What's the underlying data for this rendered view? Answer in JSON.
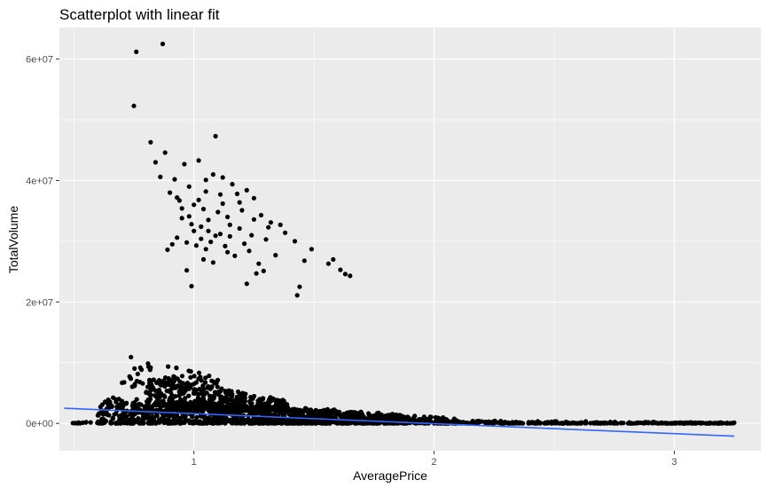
{
  "chart_data": {
    "type": "scatter",
    "title": "Scatterplot with linear fit",
    "xlabel": "AveragePrice",
    "ylabel": "TotalVolume",
    "xlim": [
      0.44,
      3.36
    ],
    "ylim": [
      -4500000,
      65200000
    ],
    "x_ticks": [
      1,
      2,
      3
    ],
    "x_tick_labels": [
      "1",
      "2",
      "3"
    ],
    "y_ticks": [
      0,
      20000000,
      40000000,
      60000000
    ],
    "y_tick_labels": [
      "0e+00",
      "2e+07",
      "4e+07",
      "6e+07"
    ],
    "grid": true,
    "background": "#ebebeb",
    "point_color": "#000000",
    "fit_color": "#3366ff",
    "fit_line": {
      "x": [
        0.46,
        3.25
      ],
      "y": [
        2500000,
        -2100000
      ]
    },
    "high_volume_points": [
      [
        0.76,
        61200000
      ],
      [
        0.87,
        62500000
      ],
      [
        0.75,
        52300000
      ],
      [
        0.82,
        46300000
      ],
      [
        1.09,
        47300000
      ],
      [
        0.84,
        43000000
      ],
      [
        0.88,
        44600000
      ],
      [
        1.02,
        43300000
      ],
      [
        0.96,
        42700000
      ],
      [
        1.08,
        41000000
      ],
      [
        1.12,
        40500000
      ],
      [
        0.92,
        40200000
      ],
      [
        0.98,
        39000000
      ],
      [
        1.05,
        38200000
      ],
      [
        1.16,
        39400000
      ],
      [
        1.18,
        37800000
      ],
      [
        1.22,
        38400000
      ],
      [
        1.25,
        37100000
      ],
      [
        0.9,
        38000000
      ],
      [
        0.94,
        36700000
      ],
      [
        1.0,
        36000000
      ],
      [
        1.04,
        35300000
      ],
      [
        1.1,
        34800000
      ],
      [
        1.14,
        34000000
      ],
      [
        1.2,
        35100000
      ],
      [
        1.28,
        34300000
      ],
      [
        1.32,
        33100000
      ],
      [
        0.95,
        33800000
      ],
      [
        0.99,
        32800000
      ],
      [
        1.03,
        32400000
      ],
      [
        1.06,
        31700000
      ],
      [
        1.11,
        31200000
      ],
      [
        1.15,
        30800000
      ],
      [
        1.19,
        32100000
      ],
      [
        1.24,
        31000000
      ],
      [
        1.3,
        30300000
      ],
      [
        1.36,
        32700000
      ],
      [
        1.38,
        31400000
      ],
      [
        0.93,
        30600000
      ],
      [
        0.97,
        29800000
      ],
      [
        1.01,
        29300000
      ],
      [
        1.05,
        28700000
      ],
      [
        1.07,
        29900000
      ],
      [
        1.13,
        29200000
      ],
      [
        0.89,
        28600000
      ],
      [
        0.91,
        29500000
      ],
      [
        1.17,
        27600000
      ],
      [
        1.23,
        28400000
      ],
      [
        1.27,
        26300000
      ],
      [
        1.34,
        27700000
      ],
      [
        1.42,
        30000000
      ],
      [
        1.46,
        26800000
      ],
      [
        1.49,
        28700000
      ],
      [
        1.56,
        26300000
      ],
      [
        1.58,
        27000000
      ],
      [
        1.61,
        25300000
      ],
      [
        1.63,
        24600000
      ],
      [
        1.65,
        24300000
      ],
      [
        1.26,
        24700000
      ],
      [
        1.29,
        25100000
      ],
      [
        1.22,
        23000000
      ],
      [
        1.44,
        22500000
      ],
      [
        1.43,
        21100000
      ],
      [
        0.99,
        22600000
      ],
      [
        0.97,
        25200000
      ],
      [
        1.04,
        27000000
      ],
      [
        1.08,
        26500000
      ],
      [
        1.02,
        36800000
      ],
      [
        1.06,
        33500000
      ],
      [
        1.12,
        36200000
      ],
      [
        1.15,
        32700000
      ],
      [
        0.95,
        35400000
      ],
      [
        1.21,
        29600000
      ],
      [
        1.0,
        31700000
      ],
      [
        1.09,
        30900000
      ],
      [
        0.86,
        40600000
      ],
      [
        0.93,
        37200000
      ],
      [
        1.11,
        37700000
      ],
      [
        1.19,
        36400000
      ],
      [
        1.05,
        40100000
      ],
      [
        0.98,
        34100000
      ],
      [
        1.03,
        30400000
      ],
      [
        1.14,
        28200000
      ],
      [
        1.25,
        33600000
      ],
      [
        1.31,
        32300000
      ]
    ],
    "low_volume_band": {
      "description_points_summary": "dense cloud near zero",
      "clusters": [
        {
          "x_from": 0.48,
          "x_to": 3.25,
          "y_from": 0,
          "y_to": 300000,
          "n": 320
        },
        {
          "x_from": 0.6,
          "x_to": 1.9,
          "y_from": 0,
          "y_to": 4500000,
          "n": 900
        },
        {
          "x_from": 0.8,
          "x_to": 1.4,
          "y_from": 2000000,
          "y_to": 8000000,
          "n": 450
        },
        {
          "x_from": 0.7,
          "x_to": 1.1,
          "y_from": 6000000,
          "y_to": 11500000,
          "n": 70
        },
        {
          "x_from": 1.4,
          "x_to": 2.1,
          "y_from": 0,
          "y_to": 2800000,
          "n": 260
        },
        {
          "x_from": 2.0,
          "x_to": 3.25,
          "y_from": 0,
          "y_to": 500000,
          "n": 180
        }
      ]
    }
  }
}
